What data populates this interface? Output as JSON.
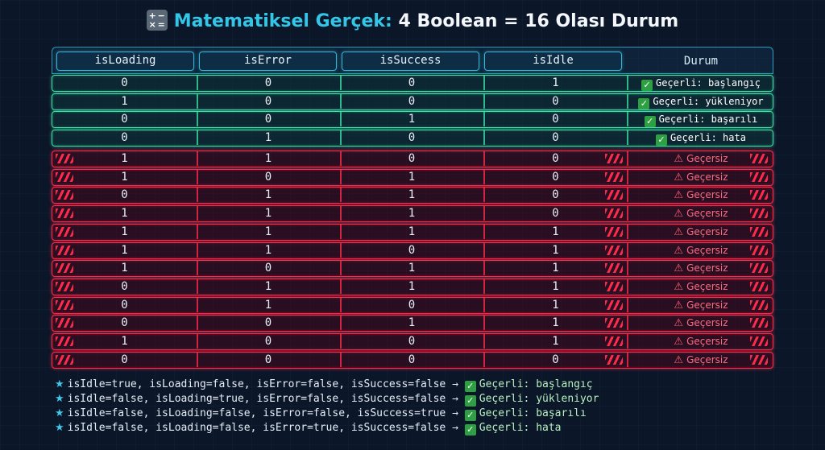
{
  "title": {
    "icon": "calculator-icon",
    "highlight": "Matematiksel Gerçek:",
    "rest": "4 Boolean = 16 Olası Durum"
  },
  "colors": {
    "accent": "#34c6e6",
    "valid": "#3ee0a8",
    "invalid": "#ff2a4a"
  },
  "columns": [
    "isLoading",
    "isError",
    "isSuccess",
    "isIdle",
    "Durum"
  ],
  "rows": [
    {
      "v": [
        "0",
        "0",
        "0",
        "1"
      ],
      "valid": true,
      "status": "Geçerli: başlangıç"
    },
    {
      "v": [
        "1",
        "0",
        "0",
        "0"
      ],
      "valid": true,
      "status": "Geçerli: yükleniyor"
    },
    {
      "v": [
        "0",
        "0",
        "1",
        "0"
      ],
      "valid": true,
      "status": "Geçerli: başarılı"
    },
    {
      "v": [
        "0",
        "1",
        "0",
        "0"
      ],
      "valid": true,
      "status": "Geçerli: hata"
    },
    {
      "v": [
        "1",
        "1",
        "0",
        "0"
      ],
      "valid": false,
      "status": "Geçersiz"
    },
    {
      "v": [
        "1",
        "0",
        "1",
        "0"
      ],
      "valid": false,
      "status": "Geçersiz"
    },
    {
      "v": [
        "0",
        "1",
        "1",
        "0"
      ],
      "valid": false,
      "status": "Geçersiz"
    },
    {
      "v": [
        "1",
        "1",
        "1",
        "0"
      ],
      "valid": false,
      "status": "Geçersiz"
    },
    {
      "v": [
        "1",
        "1",
        "1",
        "1"
      ],
      "valid": false,
      "status": "Geçersiz"
    },
    {
      "v": [
        "1",
        "1",
        "0",
        "1"
      ],
      "valid": false,
      "status": "Geçersiz"
    },
    {
      "v": [
        "1",
        "0",
        "1",
        "1"
      ],
      "valid": false,
      "status": "Geçersiz"
    },
    {
      "v": [
        "0",
        "1",
        "1",
        "1"
      ],
      "valid": false,
      "status": "Geçersiz"
    },
    {
      "v": [
        "0",
        "1",
        "0",
        "1"
      ],
      "valid": false,
      "status": "Geçersiz"
    },
    {
      "v": [
        "0",
        "0",
        "1",
        "1"
      ],
      "valid": false,
      "status": "Geçersiz"
    },
    {
      "v": [
        "1",
        "0",
        "0",
        "1"
      ],
      "valid": false,
      "status": "Geçersiz"
    },
    {
      "v": [
        "0",
        "0",
        "0",
        "0"
      ],
      "valid": false,
      "status": "Geçersiz"
    }
  ],
  "notes": [
    {
      "text": "isIdle=true, isLoading=false, isError=false, isSuccess=false →",
      "result": "Geçerli: başlangıç"
    },
    {
      "text": "isIdle=false, isLoading=true, isError=false, isSuccess=false →",
      "result": "Geçerli: yükleniyor"
    },
    {
      "text": "isIdle=false, isLoading=false, isError=false, isSuccess=true →",
      "result": "Geçerli: başarılı"
    },
    {
      "text": "isIdle=false, isLoading=false, isError=true, isSuccess=false →",
      "result": "Geçerli: hata"
    }
  ]
}
